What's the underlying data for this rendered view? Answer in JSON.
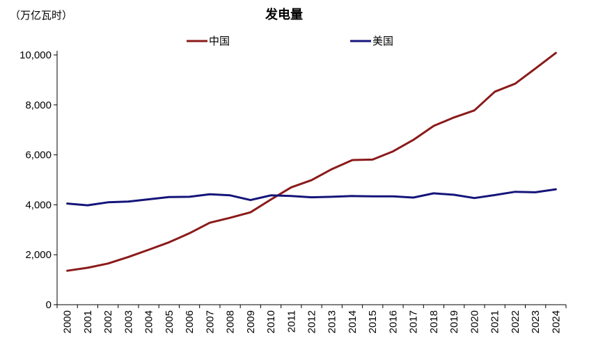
{
  "chart_data": {
    "type": "line",
    "title": "发电量",
    "unit_label": "（万亿瓦时）",
    "x": [
      "2000",
      "2001",
      "2002",
      "2003",
      "2004",
      "2005",
      "2006",
      "2007",
      "2008",
      "2009",
      "2010",
      "2011",
      "2012",
      "2013",
      "2014",
      "2015",
      "2016",
      "2017",
      "2018",
      "2019",
      "2020",
      "2021",
      "2022",
      "2023",
      "2024"
    ],
    "ylim": [
      0,
      10000
    ],
    "yticks": [
      0,
      2000,
      4000,
      6000,
      8000,
      10000
    ],
    "ytick_labels": [
      "0",
      "2,000",
      "4,000",
      "6,000",
      "8,000",
      "10,000"
    ],
    "legend_position": "top-center",
    "grid": false,
    "series": [
      {
        "name": "中国",
        "color": "#8B1A1A",
        "values": [
          1360,
          1480,
          1650,
          1910,
          2200,
          2500,
          2860,
          3280,
          3480,
          3700,
          4210,
          4700,
          4990,
          5430,
          5790,
          5810,
          6140,
          6600,
          7160,
          7500,
          7780,
          8530,
          8850,
          9460,
          10080
        ]
      },
      {
        "name": "美国",
        "color": "#14147A",
        "values": [
          4050,
          3980,
          4100,
          4130,
          4220,
          4310,
          4320,
          4420,
          4380,
          4190,
          4380,
          4350,
          4300,
          4320,
          4350,
          4340,
          4340,
          4290,
          4460,
          4400,
          4270,
          4390,
          4520,
          4500,
          4620
        ]
      }
    ]
  }
}
